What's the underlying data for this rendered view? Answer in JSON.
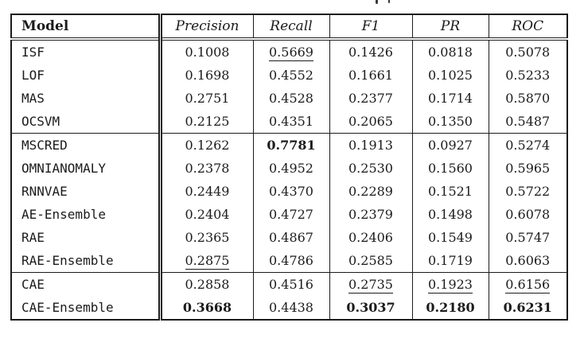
{
  "chart_data": {
    "type": "table",
    "columns": [
      "Model",
      "Precision",
      "Recall",
      "F1",
      "PR",
      "ROC"
    ],
    "style_legend": {
      "b": "bold (best value in column)",
      "u": "underline (second-best value in column)"
    },
    "rows": [
      {
        "model": "ISF",
        "group_start": false,
        "values": [
          "0.1008",
          "0.5669",
          "0.1426",
          "0.0818",
          "0.5078"
        ],
        "styles": [
          "",
          "u",
          "",
          "",
          ""
        ]
      },
      {
        "model": "LOF",
        "group_start": false,
        "values": [
          "0.1698",
          "0.4552",
          "0.1661",
          "0.1025",
          "0.5233"
        ],
        "styles": [
          "",
          "",
          "",
          "",
          ""
        ]
      },
      {
        "model": "MAS",
        "group_start": false,
        "values": [
          "0.2751",
          "0.4528",
          "0.2377",
          "0.1714",
          "0.5870"
        ],
        "styles": [
          "",
          "",
          "",
          "",
          ""
        ]
      },
      {
        "model": "OCSVM",
        "group_start": false,
        "values": [
          "0.2125",
          "0.4351",
          "0.2065",
          "0.1350",
          "0.5487"
        ],
        "styles": [
          "",
          "",
          "",
          "",
          ""
        ]
      },
      {
        "model": "MSCRED",
        "group_start": true,
        "values": [
          "0.1262",
          "0.7781",
          "0.1913",
          "0.0927",
          "0.5274"
        ],
        "styles": [
          "",
          "b",
          "",
          "",
          ""
        ]
      },
      {
        "model": "OMNIANOMALY",
        "group_start": false,
        "values": [
          "0.2378",
          "0.4952",
          "0.2530",
          "0.1560",
          "0.5965"
        ],
        "styles": [
          "",
          "",
          "",
          "",
          ""
        ]
      },
      {
        "model": "RNNVAE",
        "group_start": false,
        "values": [
          "0.2449",
          "0.4370",
          "0.2289",
          "0.1521",
          "0.5722"
        ],
        "styles": [
          "",
          "",
          "",
          "",
          ""
        ]
      },
      {
        "model": "AE-Ensemble",
        "group_start": false,
        "values": [
          "0.2404",
          "0.4727",
          "0.2379",
          "0.1498",
          "0.6078"
        ],
        "styles": [
          "",
          "",
          "",
          "",
          ""
        ]
      },
      {
        "model": "RAE",
        "group_start": false,
        "values": [
          "0.2365",
          "0.4867",
          "0.2406",
          "0.1549",
          "0.5747"
        ],
        "styles": [
          "",
          "",
          "",
          "",
          ""
        ]
      },
      {
        "model": "RAE-Ensemble",
        "group_start": false,
        "values": [
          "0.2875",
          "0.4786",
          "0.2585",
          "0.1719",
          "0.6063"
        ],
        "styles": [
          "u",
          "",
          "",
          "",
          ""
        ]
      },
      {
        "model": "CAE",
        "group_start": true,
        "values": [
          "0.2858",
          "0.4516",
          "0.2735",
          "0.1923",
          "0.6156"
        ],
        "styles": [
          "",
          "",
          "u",
          "u",
          "u"
        ]
      },
      {
        "model": "CAE-Ensemble",
        "group_start": false,
        "values": [
          "0.3668",
          "0.4438",
          "0.3037",
          "0.2180",
          "0.6231"
        ],
        "styles": [
          "b",
          "",
          "b",
          "b",
          "b"
        ]
      }
    ],
    "colors": {
      "text": "#1b1b1b",
      "border": "#1b1b1b",
      "background": "#ffffff"
    }
  }
}
